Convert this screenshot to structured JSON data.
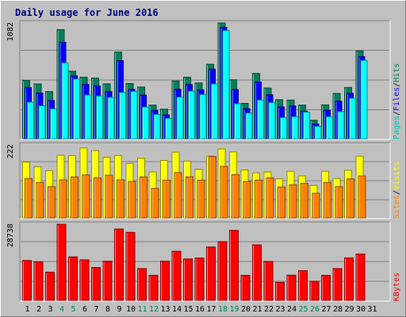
{
  "chart_data": {
    "type": "bar",
    "title": "Daily usage for June 2016",
    "days": [
      "1",
      "2",
      "3",
      "4",
      "5",
      "6",
      "7",
      "8",
      "9",
      "10",
      "11",
      "12",
      "13",
      "14",
      "15",
      "16",
      "17",
      "18",
      "19",
      "20",
      "21",
      "22",
      "23",
      "24",
      "25",
      "26",
      "27",
      "28",
      "29",
      "30",
      "31"
    ],
    "weekend_days": [
      4,
      5,
      11,
      12,
      18,
      19,
      25,
      26
    ],
    "colors": {
      "hits": "#00805c",
      "files": "#0000ff",
      "pages": "#00ffff",
      "visits": "#ffff00",
      "sites": "#ff8000",
      "kbytes": "#ff0000",
      "grid": "#808080",
      "plot_bg": "#c0c0c0",
      "weekday_label": "#000000",
      "weekend_label": "#00805c",
      "title": "#000080"
    },
    "panels": [
      {
        "ymax_label": "1082",
        "ymax": 1082,
        "legend": [
          {
            "text": "Pages",
            "color": "#00c0c0"
          },
          {
            "text": "/",
            "color": "#000000"
          },
          {
            "text": "Files",
            "color": "#0000ff"
          },
          {
            "text": "/",
            "color": "#000000"
          },
          {
            "text": "Hits",
            "color": "#00805c"
          }
        ],
        "series": [
          {
            "name": "Hits",
            "color": "#00805c",
            "values": [
              544,
              512,
              441,
              1020,
              631,
              575,
              567,
              513,
              810,
              516,
              483,
              314,
              276,
              540,
              575,
              521,
              696,
              1082,
              551,
              330,
              610,
              474,
              365,
              361,
              314,
              173,
              316,
              423,
              479,
              821,
              0
            ]
          },
          {
            "name": "Files",
            "color": "#0000ff",
            "values": [
              477,
              427,
              356,
              901,
              588,
              508,
              494,
              441,
              730,
              461,
              408,
              264,
              222,
              463,
              506,
              457,
              650,
              1041,
              460,
              281,
              530,
              411,
              297,
              306,
              256,
              137,
              265,
              351,
              424,
              767,
              0
            ]
          },
          {
            "name": "Pages",
            "color": "#00ffff",
            "values": [
              341,
              308,
              280,
              710,
              558,
              408,
              399,
              386,
              432,
              443,
              296,
              227,
              190,
              389,
              445,
              413,
              512,
              1011,
              327,
              240,
              361,
              338,
              198,
              206,
              248,
              116,
              206,
              253,
              378,
              732,
              0
            ]
          }
        ]
      },
      {
        "ymax_label": "222",
        "ymax": 222,
        "legend": [
          {
            "text": "Sites",
            "color": "#ff8000"
          },
          {
            "text": "/",
            "color": "#000000"
          },
          {
            "text": "Visits",
            "color": "#ffff00"
          }
        ],
        "series": [
          {
            "name": "Visits",
            "color": "#ffff00",
            "values": [
              170,
              156,
              144,
              191,
              190,
              213,
              205,
              185,
              190,
              166,
              182,
              140,
              175,
              200,
              173,
              148,
              188,
              210,
              201,
              146,
              137,
              140,
              119,
              142,
              128,
              99,
              142,
              120,
              145,
              188,
              0
            ]
          },
          {
            "name": "Sites",
            "color": "#ff8000",
            "values": [
              120,
              108,
              95,
              116,
              125,
              131,
              122,
              130,
              116,
              111,
              125,
              90,
              115,
              138,
              125,
              115,
              187,
              157,
              132,
              111,
              115,
              122,
              94,
              101,
              105,
              75,
              108,
              95,
              119,
              128,
              0
            ]
          }
        ]
      },
      {
        "ymax_label": "28738",
        "ymax": 28738,
        "legend": [
          {
            "text": "KBytes",
            "color": "#ff0000"
          }
        ],
        "series": [
          {
            "name": "KBytes",
            "color": "#ff0000",
            "values": [
              15060,
              14540,
              10650,
              28738,
              16430,
              15320,
              12420,
              14800,
              26930,
              25690,
              12000,
              9460,
              14800,
              18540,
              15640,
              15990,
              20140,
              22170,
              26420,
              9460,
              20960,
              14700,
              6810,
              9500,
              11220,
              7210,
              9460,
              12000,
              16050,
              17500,
              0
            ]
          }
        ]
      }
    ]
  }
}
